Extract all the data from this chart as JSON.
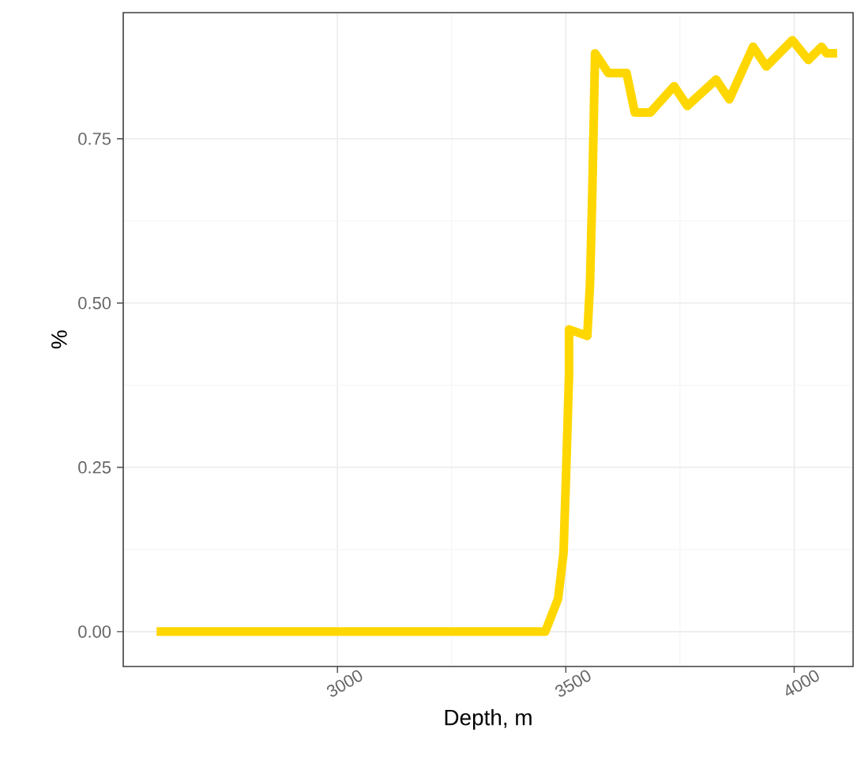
{
  "chart_data": {
    "type": "line",
    "xlabel": "Depth, m",
    "ylabel": "%",
    "x": [
      2604,
      3455,
      3483,
      3495,
      3501,
      3507,
      3507,
      3547,
      3553,
      3558,
      3564,
      3593,
      3633,
      3651,
      3685,
      3737,
      3766,
      3829,
      3858,
      3910,
      3939,
      3996,
      4031,
      4060,
      4071,
      4094
    ],
    "series": [
      {
        "color": "#ffd700",
        "values": [
          0,
          0,
          0.05,
          0.12,
          0.25,
          0.39,
          0.46,
          0.45,
          0.53,
          0.67,
          0.88,
          0.85,
          0.85,
          0.79,
          0.79,
          0.83,
          0.8,
          0.84,
          0.81,
          0.89,
          0.86,
          0.9,
          0.87,
          0.89,
          0.88,
          0.88
        ]
      }
    ],
    "xlim": [
      2531,
      4129
    ],
    "ylim": [
      -0.053,
      0.942
    ],
    "xticks": [
      3000,
      3500,
      4000
    ],
    "yticks": [
      {
        "value": 0,
        "label": "0.00"
      },
      {
        "value": 0.25,
        "label": "0.25"
      },
      {
        "value": 0.5,
        "label": "0.50"
      },
      {
        "value": 0.75,
        "label": "0.75"
      }
    ],
    "grid": true,
    "marker": "none",
    "line_style": "solid"
  }
}
